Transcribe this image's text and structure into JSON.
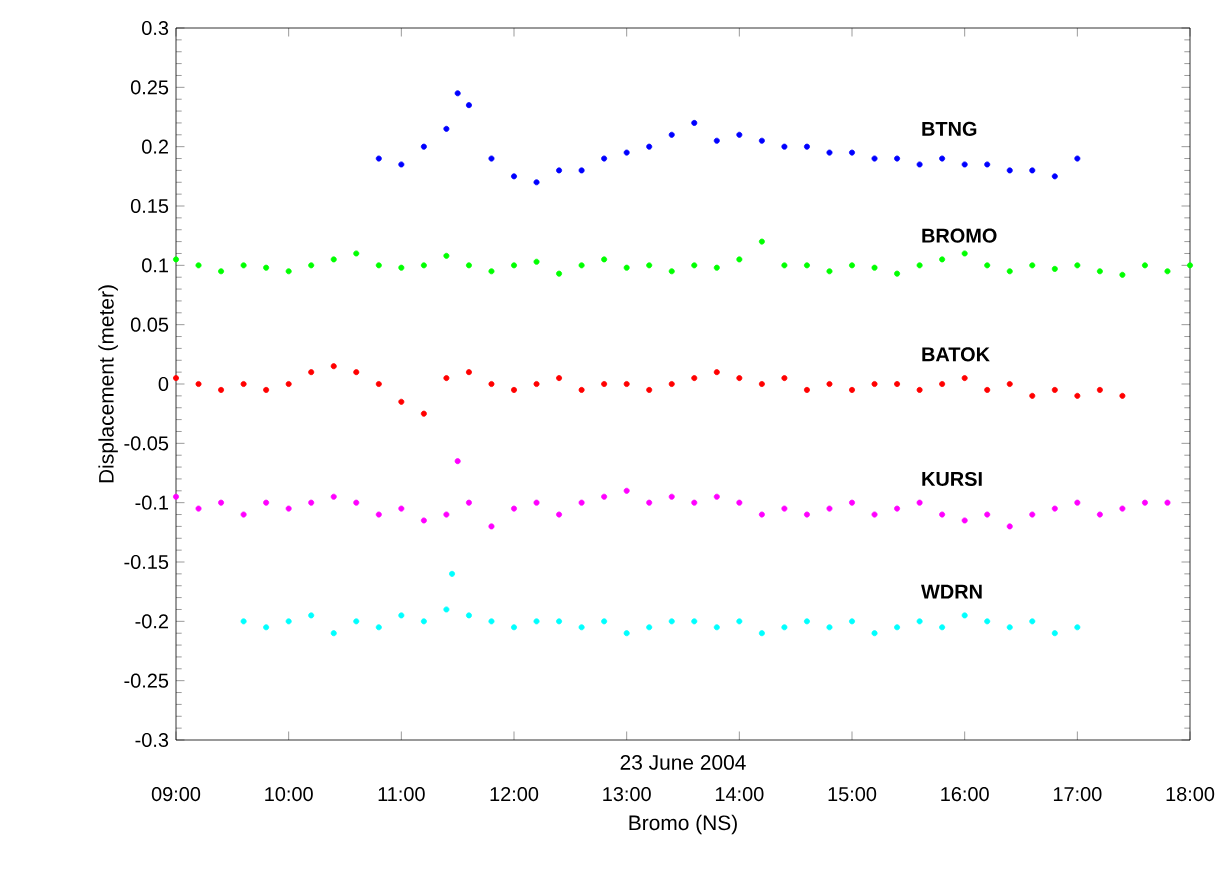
{
  "chart_data": {
    "type": "scatter",
    "xlabel": "Bromo (NS)",
    "ylabel": "Displacement (meter)",
    "annotations": [
      "23 June 2004"
    ],
    "xlim": [
      9,
      18
    ],
    "xticks": [
      {
        "value": 9,
        "label": "09:00"
      },
      {
        "value": 10,
        "label": "10:00"
      },
      {
        "value": 11,
        "label": "11:00"
      },
      {
        "value": 12,
        "label": "12:00"
      },
      {
        "value": 13,
        "label": "13:00"
      },
      {
        "value": 14,
        "label": "14:00"
      },
      {
        "value": 15,
        "label": "15:00"
      },
      {
        "value": 16,
        "label": "16:00"
      },
      {
        "value": 17,
        "label": "17:00"
      },
      {
        "value": 18,
        "label": "18:00"
      }
    ],
    "ylim": [
      -0.3,
      0.3
    ],
    "yticks": [
      -0.3,
      -0.25,
      -0.2,
      -0.15,
      -0.1,
      -0.05,
      0,
      0.05,
      0.1,
      0.15,
      0.2,
      0.25,
      0.3
    ],
    "marker": "circle",
    "series": [
      {
        "name": "BTNG",
        "color": "#0000ff",
        "x": [
          10.8,
          11.0,
          11.2,
          11.4,
          11.6,
          11.8,
          12.0,
          12.2,
          12.4,
          12.6,
          12.8,
          13.0,
          13.2,
          13.4,
          13.6,
          13.8,
          14.0,
          14.2,
          14.4,
          14.6,
          14.8,
          15.0,
          15.2,
          15.4,
          15.6,
          15.8,
          16.0,
          16.2,
          16.4,
          16.6,
          16.8,
          17.0,
          11.5
        ],
        "values": [
          0.19,
          0.185,
          0.2,
          0.215,
          0.235,
          0.19,
          0.175,
          0.17,
          0.18,
          0.18,
          0.19,
          0.195,
          0.2,
          0.21,
          0.22,
          0.205,
          0.21,
          0.205,
          0.2,
          0.2,
          0.195,
          0.195,
          0.19,
          0.19,
          0.185,
          0.19,
          0.185,
          0.185,
          0.18,
          0.18,
          0.175,
          0.19,
          0.245
        ]
      },
      {
        "name": "BROMO",
        "color": "#00ff00",
        "x": [
          9.0,
          9.2,
          9.4,
          9.6,
          9.8,
          10.0,
          10.2,
          10.4,
          10.6,
          10.8,
          11.0,
          11.2,
          11.4,
          11.6,
          11.8,
          12.0,
          12.2,
          12.4,
          12.6,
          12.8,
          13.0,
          13.2,
          13.4,
          13.6,
          13.8,
          14.0,
          14.2,
          14.4,
          14.6,
          14.8,
          15.0,
          15.2,
          15.4,
          15.6,
          15.8,
          16.0,
          16.2,
          16.4,
          16.6,
          16.8,
          17.0,
          17.2,
          17.4,
          17.6,
          17.8,
          18.0
        ],
        "values": [
          0.105,
          0.1,
          0.095,
          0.1,
          0.098,
          0.095,
          0.1,
          0.105,
          0.11,
          0.1,
          0.098,
          0.1,
          0.108,
          0.1,
          0.095,
          0.1,
          0.103,
          0.093,
          0.1,
          0.105,
          0.098,
          0.1,
          0.095,
          0.1,
          0.098,
          0.105,
          0.12,
          0.1,
          0.1,
          0.095,
          0.1,
          0.098,
          0.093,
          0.1,
          0.105,
          0.11,
          0.1,
          0.095,
          0.1,
          0.097,
          0.1,
          0.095,
          0.092,
          0.1,
          0.095,
          0.1
        ]
      },
      {
        "name": "BATOK",
        "color": "#ff0000",
        "x": [
          9.0,
          9.2,
          9.4,
          9.6,
          9.8,
          10.0,
          10.2,
          10.4,
          10.6,
          10.8,
          11.0,
          11.2,
          11.4,
          11.6,
          11.8,
          12.0,
          12.2,
          12.4,
          12.6,
          12.8,
          13.0,
          13.2,
          13.4,
          13.6,
          13.8,
          14.0,
          14.2,
          14.4,
          14.6,
          14.8,
          15.0,
          15.2,
          15.4,
          15.6,
          15.8,
          16.0,
          16.2,
          16.4,
          16.6,
          16.8,
          17.0,
          17.2,
          17.4
        ],
        "values": [
          0.005,
          0.0,
          -0.005,
          0.0,
          -0.005,
          0.0,
          0.01,
          0.015,
          0.01,
          0.0,
          -0.015,
          -0.025,
          0.005,
          0.01,
          0.0,
          -0.005,
          0.0,
          0.005,
          -0.005,
          0.0,
          0.0,
          -0.005,
          0.0,
          0.005,
          0.01,
          0.005,
          0.0,
          0.005,
          -0.005,
          0.0,
          -0.005,
          0.0,
          0.0,
          -0.005,
          0.0,
          0.005,
          -0.005,
          0.0,
          -0.01,
          -0.005,
          -0.01,
          -0.005,
          -0.01
        ]
      },
      {
        "name": "KURSI",
        "color": "#ff00ff",
        "x": [
          9.0,
          9.2,
          9.4,
          9.6,
          9.8,
          10.0,
          10.2,
          10.4,
          10.6,
          10.8,
          11.0,
          11.2,
          11.4,
          11.6,
          11.8,
          12.0,
          12.2,
          12.4,
          12.6,
          12.8,
          13.0,
          13.2,
          13.4,
          13.6,
          13.8,
          14.0,
          14.2,
          14.4,
          14.6,
          14.8,
          15.0,
          15.2,
          15.4,
          15.6,
          15.8,
          16.0,
          16.2,
          16.4,
          16.6,
          16.8,
          17.0,
          17.2,
          17.4,
          17.6,
          17.8,
          11.5
        ],
        "values": [
          -0.095,
          -0.105,
          -0.1,
          -0.11,
          -0.1,
          -0.105,
          -0.1,
          -0.095,
          -0.1,
          -0.11,
          -0.105,
          -0.115,
          -0.11,
          -0.1,
          -0.12,
          -0.105,
          -0.1,
          -0.11,
          -0.1,
          -0.095,
          -0.09,
          -0.1,
          -0.095,
          -0.1,
          -0.095,
          -0.1,
          -0.11,
          -0.105,
          -0.11,
          -0.105,
          -0.1,
          -0.11,
          -0.105,
          -0.1,
          -0.11,
          -0.115,
          -0.11,
          -0.12,
          -0.11,
          -0.105,
          -0.1,
          -0.11,
          -0.105,
          -0.1,
          -0.1,
          -0.065
        ]
      },
      {
        "name": "WDRN",
        "color": "#00ffff",
        "x": [
          9.6,
          9.8,
          10.0,
          10.2,
          10.4,
          10.6,
          10.8,
          11.0,
          11.2,
          11.4,
          11.6,
          11.8,
          12.0,
          12.2,
          12.4,
          12.6,
          12.8,
          13.0,
          13.2,
          13.4,
          13.6,
          13.8,
          14.0,
          14.2,
          14.4,
          14.6,
          14.8,
          15.0,
          15.2,
          15.4,
          15.6,
          15.8,
          16.0,
          16.2,
          16.4,
          16.6,
          16.8,
          17.0,
          11.45
        ],
        "values": [
          -0.2,
          -0.205,
          -0.2,
          -0.195,
          -0.21,
          -0.2,
          -0.205,
          -0.195,
          -0.2,
          -0.19,
          -0.195,
          -0.2,
          -0.205,
          -0.2,
          -0.2,
          -0.205,
          -0.2,
          -0.21,
          -0.205,
          -0.2,
          -0.2,
          -0.205,
          -0.2,
          -0.21,
          -0.205,
          -0.2,
          -0.205,
          -0.2,
          -0.21,
          -0.205,
          -0.2,
          -0.205,
          -0.195,
          -0.2,
          -0.205,
          -0.2,
          -0.21,
          -0.205,
          -0.16
        ]
      }
    ]
  }
}
